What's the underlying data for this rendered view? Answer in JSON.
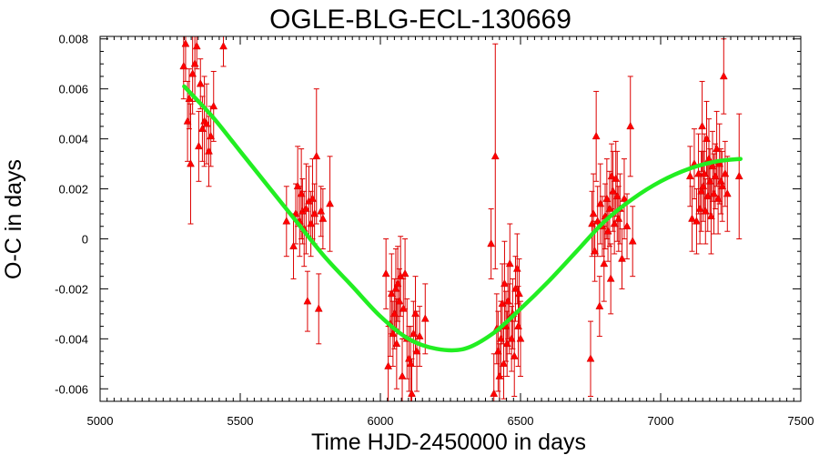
{
  "chart_data": {
    "type": "scatter",
    "title": "OGLE-BLG-ECL-130669",
    "xlabel": "Time HJD-2450000 in days",
    "ylabel": "O-C in days",
    "xlim": [
      5000,
      7500
    ],
    "ylim": [
      -0.0065,
      0.0081
    ],
    "x_ticks": [
      5000,
      5500,
      6000,
      6500,
      7000,
      7500
    ],
    "x_tick_labels": [
      "5000",
      "5500",
      "6000",
      "6500",
      "7000",
      "7500"
    ],
    "y_ticks": [
      -0.006,
      -0.004,
      -0.002,
      0,
      0.002,
      0.004,
      0.006,
      0.008
    ],
    "y_tick_labels": [
      "-0.006",
      "-0.004",
      "-0.002",
      "0",
      "0.002",
      "0.004",
      "0.006",
      "0.008"
    ],
    "grid": false,
    "legend": "none",
    "colors": {
      "points": "#ff0000",
      "error_bars": "#dd0000",
      "fit": "#22ee22"
    },
    "series": [
      {
        "marker": "triangle",
        "points": [
          {
            "x": 5298,
            "y": 0.0069,
            "err": 0.0013
          },
          {
            "x": 5305,
            "y": 0.0078,
            "err": 0.0015
          },
          {
            "x": 5312,
            "y": 0.0047,
            "err": 0.0016
          },
          {
            "x": 5318,
            "y": 0.0056,
            "err": 0.0012
          },
          {
            "x": 5323,
            "y": 0.003,
            "err": 0.0024
          },
          {
            "x": 5330,
            "y": 0.0066,
            "err": 0.0016
          },
          {
            "x": 5338,
            "y": 0.007,
            "err": 0.0015
          },
          {
            "x": 5345,
            "y": 0.0077,
            "err": 0.0009
          },
          {
            "x": 5352,
            "y": 0.0037,
            "err": 0.0014
          },
          {
            "x": 5358,
            "y": 0.0062,
            "err": 0.001
          },
          {
            "x": 5365,
            "y": 0.0044,
            "err": 0.0013
          },
          {
            "x": 5372,
            "y": 0.0047,
            "err": 0.0018
          },
          {
            "x": 5380,
            "y": 0.0046,
            "err": 0.0016
          },
          {
            "x": 5388,
            "y": 0.0035,
            "err": 0.0014
          },
          {
            "x": 5395,
            "y": 0.0041,
            "err": 0.0012
          },
          {
            "x": 5405,
            "y": 0.0053,
            "err": 0.0014
          },
          {
            "x": 5440,
            "y": 0.0077,
            "err": 0.0008
          },
          {
            "x": 5665,
            "y": 0.0007,
            "err": 0.0014
          },
          {
            "x": 5690,
            "y": -0.0003,
            "err": 0.0013
          },
          {
            "x": 5698,
            "y": 0.001,
            "err": 0.0012
          },
          {
            "x": 5705,
            "y": 0.0021,
            "err": 0.0016
          },
          {
            "x": 5712,
            "y": 0.0007,
            "err": 0.0014
          },
          {
            "x": 5718,
            "y": 0.0018,
            "err": 0.0018
          },
          {
            "x": 5722,
            "y": 0.0011,
            "err": 0.0013
          },
          {
            "x": 5728,
            "y": 0.0004,
            "err": 0.0015
          },
          {
            "x": 5735,
            "y": 0.0012,
            "err": 0.0018
          },
          {
            "x": 5740,
            "y": -0.0025,
            "err": 0.0012
          },
          {
            "x": 5745,
            "y": 0.0015,
            "err": 0.0014
          },
          {
            "x": 5752,
            "y": 0.0006,
            "err": 0.0013
          },
          {
            "x": 5758,
            "y": 0.0016,
            "err": 0.0016
          },
          {
            "x": 5765,
            "y": 0.001,
            "err": 0.0012
          },
          {
            "x": 5772,
            "y": 0.0033,
            "err": 0.0027
          },
          {
            "x": 5780,
            "y": -0.0028,
            "err": 0.0014
          },
          {
            "x": 5788,
            "y": 0.0011,
            "err": 0.001
          },
          {
            "x": 5795,
            "y": 0.0008,
            "err": 0.0012
          },
          {
            "x": 5820,
            "y": 0.0014,
            "err": 0.0019
          },
          {
            "x": 6020,
            "y": -0.0014,
            "err": 0.0014
          },
          {
            "x": 6028,
            "y": -0.0051,
            "err": 0.0016
          },
          {
            "x": 6035,
            "y": -0.0034,
            "err": 0.0013
          },
          {
            "x": 6040,
            "y": -0.0022,
            "err": 0.0016
          },
          {
            "x": 6045,
            "y": -0.0038,
            "err": 0.0013
          },
          {
            "x": 6050,
            "y": -0.003,
            "err": 0.0014
          },
          {
            "x": 6055,
            "y": -0.002,
            "err": 0.0016
          },
          {
            "x": 6058,
            "y": -0.0042,
            "err": 0.0018
          },
          {
            "x": 6062,
            "y": -0.0018,
            "err": 0.0015
          },
          {
            "x": 6068,
            "y": -0.0025,
            "err": 0.0013
          },
          {
            "x": 6072,
            "y": -0.0015,
            "err": 0.0016
          },
          {
            "x": 6078,
            "y": -0.0055,
            "err": 0.0015
          },
          {
            "x": 6082,
            "y": -0.0028,
            "err": 0.0012
          },
          {
            "x": 6088,
            "y": -0.0014,
            "err": 0.0014
          },
          {
            "x": 6095,
            "y": -0.004,
            "err": 0.0016
          },
          {
            "x": 6102,
            "y": -0.0048,
            "err": 0.0013
          },
          {
            "x": 6108,
            "y": -0.005,
            "err": 0.0015
          },
          {
            "x": 6112,
            "y": -0.0062,
            "err": 0.0014
          },
          {
            "x": 6118,
            "y": -0.0038,
            "err": 0.0013
          },
          {
            "x": 6125,
            "y": -0.003,
            "err": 0.0015
          },
          {
            "x": 6130,
            "y": -0.0045,
            "err": 0.0016
          },
          {
            "x": 6140,
            "y": -0.0039,
            "err": 0.0012
          },
          {
            "x": 6160,
            "y": -0.0032,
            "err": 0.0014
          },
          {
            "x": 6395,
            "y": -0.0002,
            "err": 0.0014
          },
          {
            "x": 6405,
            "y": -0.0062,
            "err": 0.0016
          },
          {
            "x": 6410,
            "y": 0.0033,
            "err": 0.0045
          },
          {
            "x": 6415,
            "y": -0.0036,
            "err": 0.0014
          },
          {
            "x": 6420,
            "y": -0.0045,
            "err": 0.0016
          },
          {
            "x": 6425,
            "y": -0.0055,
            "err": 0.0013
          },
          {
            "x": 6430,
            "y": -0.004,
            "err": 0.0015
          },
          {
            "x": 6435,
            "y": -0.0026,
            "err": 0.0016
          },
          {
            "x": 6440,
            "y": -0.005,
            "err": 0.0014
          },
          {
            "x": 6443,
            "y": -0.0018,
            "err": 0.0017
          },
          {
            "x": 6448,
            "y": -0.0035,
            "err": 0.0014
          },
          {
            "x": 6452,
            "y": -0.0042,
            "err": 0.0013
          },
          {
            "x": 6455,
            "y": -0.0025,
            "err": 0.0015
          },
          {
            "x": 6460,
            "y": -0.0032,
            "err": 0.0014
          },
          {
            "x": 6462,
            "y": -0.001,
            "err": 0.0016
          },
          {
            "x": 6468,
            "y": -0.004,
            "err": 0.0013
          },
          {
            "x": 6472,
            "y": -0.003,
            "err": 0.0014
          },
          {
            "x": 6478,
            "y": -0.0047,
            "err": 0.0016
          },
          {
            "x": 6482,
            "y": -0.002,
            "err": 0.0013
          },
          {
            "x": 6488,
            "y": -0.0012,
            "err": 0.0014
          },
          {
            "x": 6492,
            "y": -0.0035,
            "err": 0.0016
          },
          {
            "x": 6495,
            "y": -0.0022,
            "err": 0.0014
          },
          {
            "x": 6500,
            "y": -0.004,
            "err": 0.0015
          },
          {
            "x": 6750,
            "y": -0.0048,
            "err": 0.0015
          },
          {
            "x": 6755,
            "y": 0.0006,
            "err": 0.0013
          },
          {
            "x": 6760,
            "y": 0.001,
            "err": 0.0016
          },
          {
            "x": 6765,
            "y": -0.0005,
            "err": 0.0012
          },
          {
            "x": 6770,
            "y": 0.0041,
            "err": 0.0018
          },
          {
            "x": 6775,
            "y": 0.0007,
            "err": 0.0014
          },
          {
            "x": 6782,
            "y": -0.0027,
            "err": 0.0012
          },
          {
            "x": 6785,
            "y": 0.0014,
            "err": 0.0016
          },
          {
            "x": 6792,
            "y": 0.0005,
            "err": 0.0012
          },
          {
            "x": 6798,
            "y": -0.001,
            "err": 0.0015
          },
          {
            "x": 6802,
            "y": 0.0009,
            "err": 0.0013
          },
          {
            "x": 6808,
            "y": 0.0016,
            "err": 0.0016
          },
          {
            "x": 6812,
            "y": 0.0003,
            "err": 0.0012
          },
          {
            "x": 6818,
            "y": 0.0012,
            "err": 0.0015
          },
          {
            "x": 6822,
            "y": -0.0016,
            "err": 0.0014
          },
          {
            "x": 6825,
            "y": 0.0025,
            "err": 0.0013
          },
          {
            "x": 6830,
            "y": 0.0019,
            "err": 0.0016
          },
          {
            "x": 6835,
            "y": 0.0006,
            "err": 0.0012
          },
          {
            "x": 6840,
            "y": 0.0024,
            "err": 0.0015
          },
          {
            "x": 6845,
            "y": 0.0017,
            "err": 0.0018
          },
          {
            "x": 6850,
            "y": 0.0008,
            "err": 0.0013
          },
          {
            "x": 6855,
            "y": 0.0012,
            "err": 0.0014
          },
          {
            "x": 6862,
            "y": -0.0008,
            "err": 0.0012
          },
          {
            "x": 6870,
            "y": 0.0016,
            "err": 0.0016
          },
          {
            "x": 6880,
            "y": 0.0005,
            "err": 0.0013
          },
          {
            "x": 6892,
            "y": 0.0045,
            "err": 0.002
          },
          {
            "x": 6900,
            "y": -0.0001,
            "err": 0.0014
          },
          {
            "x": 7105,
            "y": 0.0025,
            "err": 0.0012
          },
          {
            "x": 7112,
            "y": 0.0008,
            "err": 0.0013
          },
          {
            "x": 7120,
            "y": 0.003,
            "err": 0.0014
          },
          {
            "x": 7128,
            "y": 0.0007,
            "err": 0.0013
          },
          {
            "x": 7135,
            "y": 0.0026,
            "err": 0.0016
          },
          {
            "x": 7140,
            "y": 0.0012,
            "err": 0.0014
          },
          {
            "x": 7145,
            "y": 0.0019,
            "err": 0.0016
          },
          {
            "x": 7148,
            "y": 0.0045,
            "err": 0.0018
          },
          {
            "x": 7152,
            "y": 0.0021,
            "err": 0.0014
          },
          {
            "x": 7156,
            "y": 0.0026,
            "err": 0.0016
          },
          {
            "x": 7160,
            "y": 0.0011,
            "err": 0.0013
          },
          {
            "x": 7164,
            "y": 0.004,
            "err": 0.0015
          },
          {
            "x": 7168,
            "y": 0.0017,
            "err": 0.0014
          },
          {
            "x": 7172,
            "y": 0.0032,
            "err": 0.0016
          },
          {
            "x": 7176,
            "y": 0.0023,
            "err": 0.0013
          },
          {
            "x": 7180,
            "y": 0.0009,
            "err": 0.0015
          },
          {
            "x": 7185,
            "y": 0.0029,
            "err": 0.0014
          },
          {
            "x": 7190,
            "y": 0.0018,
            "err": 0.0016
          },
          {
            "x": 7195,
            "y": 0.0025,
            "err": 0.0013
          },
          {
            "x": 7200,
            "y": 0.0036,
            "err": 0.0015
          },
          {
            "x": 7205,
            "y": 0.0016,
            "err": 0.0014
          },
          {
            "x": 7210,
            "y": 0.003,
            "err": 0.0016
          },
          {
            "x": 7215,
            "y": 0.0023,
            "err": 0.0013
          },
          {
            "x": 7220,
            "y": 0.0021,
            "err": 0.0014
          },
          {
            "x": 7225,
            "y": 0.0065,
            "err": 0.0015
          },
          {
            "x": 7230,
            "y": 0.0026,
            "err": 0.0013
          },
          {
            "x": 7238,
            "y": 0.0018,
            "err": 0.0015
          },
          {
            "x": 7280,
            "y": 0.0025,
            "err": 0.0025
          }
        ]
      },
      {
        "line": "fit",
        "x": [
          5300,
          5400,
          5500,
          5600,
          5700,
          5800,
          5900,
          6000,
          6100,
          6200,
          6300,
          6400,
          6500,
          6600,
          6700,
          6800,
          6900,
          7000,
          7100,
          7200,
          7285
        ],
        "y": [
          0.0061,
          0.0049,
          0.0035,
          0.0021,
          0.0007,
          -0.0007,
          -0.0019,
          -0.0031,
          -0.004,
          -0.0044,
          -0.0044,
          -0.0038,
          -0.0028,
          -0.0017,
          -0.0005,
          0.0007,
          0.0016,
          0.0023,
          0.0028,
          0.0031,
          0.0032
        ]
      }
    ]
  }
}
